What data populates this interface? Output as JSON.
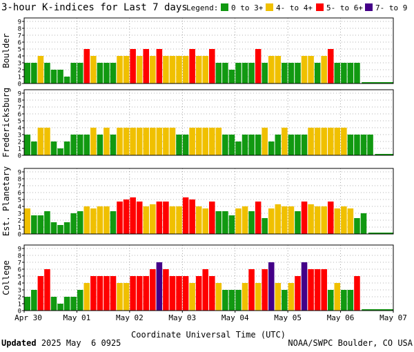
{
  "chart_data": {
    "type": "bar",
    "title": "3-hour K-indices for Last 7 days",
    "legend": {
      "label": "Legend:",
      "placement": "top-right",
      "entries": [
        {
          "label": "0 to 3+",
          "color": "#119911"
        },
        {
          "label": "4- to 4+",
          "color": "#f0c000"
        },
        {
          "label": "5- to 6+",
          "color": "#ff0000"
        },
        {
          "label": "7- to 9",
          "color": "#440088"
        }
      ]
    },
    "xlabel": "Coordinate Universal Time (UTC)",
    "x_ticks": [
      "Apr 30",
      "May 01",
      "May 02",
      "May 03",
      "May 04",
      "May 05",
      "May 06",
      "May 07"
    ],
    "ylim": [
      0,
      9
    ],
    "y_ticks": [
      0,
      1,
      2,
      3,
      4,
      5,
      6,
      7,
      8,
      9
    ],
    "grid": true,
    "intervals_per_day": 8,
    "series": [
      {
        "name": "Boulder",
        "values": [
          3,
          3,
          4,
          3,
          2,
          2,
          1,
          3,
          3,
          5,
          4,
          3,
          3,
          3,
          4,
          4,
          5,
          4,
          5,
          4,
          5,
          4,
          4,
          4,
          4,
          5,
          4,
          4,
          5,
          3,
          3,
          2,
          3,
          3,
          3,
          5,
          3,
          4,
          4,
          3,
          3,
          3,
          4,
          4,
          3,
          4,
          5,
          3,
          3,
          3,
          3
        ]
      },
      {
        "name": "Fredericksburg",
        "values": [
          3,
          2,
          4,
          4,
          2,
          1,
          2,
          3,
          3,
          3,
          4,
          3,
          4,
          3,
          4,
          4,
          4,
          4,
          4,
          4,
          4,
          4,
          4,
          3,
          3,
          4,
          4,
          4,
          4,
          4,
          3,
          3,
          2,
          3,
          3,
          3,
          4,
          2,
          3,
          4,
          3,
          3,
          3,
          4,
          4,
          4,
          4,
          4,
          4,
          3,
          3,
          3,
          3
        ]
      },
      {
        "name": "Est. Planetary",
        "values": [
          3.7,
          2.7,
          2.7,
          3.3,
          1.7,
          1.3,
          1.7,
          3,
          3.3,
          4,
          3.7,
          4,
          4,
          3.3,
          4.7,
          5,
          5.3,
          4.7,
          4,
          4.3,
          4.7,
          4.7,
          4,
          4,
          5.3,
          5,
          4,
          3.7,
          4.7,
          3.3,
          3.3,
          2.7,
          3.7,
          4,
          3.3,
          4.7,
          2.3,
          3.7,
          4.3,
          4,
          4,
          3.3,
          4.7,
          4.3,
          4,
          4,
          4.7,
          3.7,
          4,
          3.7,
          2.3,
          3
        ]
      },
      {
        "name": "College",
        "values": [
          2,
          3,
          5,
          6,
          2,
          1,
          2,
          2,
          3,
          4,
          5,
          5,
          5,
          5,
          4,
          4,
          5,
          5,
          5,
          6,
          7,
          6,
          5,
          5,
          5,
          4,
          5,
          6,
          5,
          4,
          3,
          3,
          3,
          4,
          6,
          4,
          6,
          7,
          4,
          3,
          4,
          5,
          7,
          6,
          6,
          6,
          3,
          4,
          3,
          3,
          5
        ]
      }
    ]
  },
  "footer": {
    "updated_label": "Updated",
    "updated_value": "2025 May  6 0925",
    "source": "NOAA/SWPC Boulder, CO USA"
  }
}
